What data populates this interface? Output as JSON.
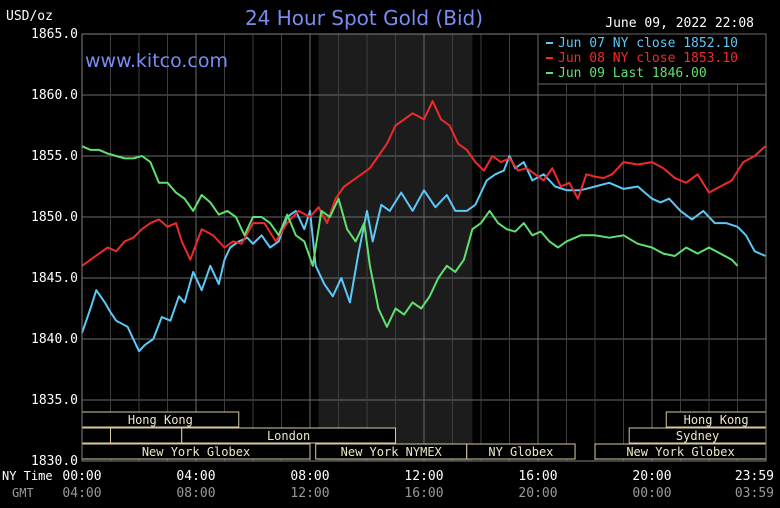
{
  "chart_data": {
    "type": "line",
    "title": "24 Hour Spot Gold (Bid)",
    "watermark": "www.kitco.com",
    "timestamp": "June 09, 2022 22:08",
    "y_unit_label": "USD/oz",
    "ylim": [
      1830,
      1865
    ],
    "y_ticks": [
      "1865.0",
      "1860.0",
      "1855.0",
      "1850.0",
      "1845.0",
      "1840.0",
      "1835.0",
      "1830.0"
    ],
    "x_row_labels": {
      "ny": "NY Time",
      "gmt": "GMT"
    },
    "x_ticks_ny": [
      "00:00",
      "04:00",
      "08:00",
      "12:00",
      "16:00",
      "20:00",
      "23:59"
    ],
    "x_ticks_gmt": [
      "04:00",
      "08:00",
      "12:00",
      "16:00",
      "20:00",
      "00:00",
      "03:59"
    ],
    "x_tick_hours": [
      0,
      4,
      8,
      12,
      16,
      20,
      23.983
    ],
    "grid": true,
    "legend_position": "top-right",
    "shaded_hours": [
      8.3,
      13.7
    ],
    "sessions": [
      {
        "label": "Hong Kong",
        "row": 0,
        "start": 0,
        "end": 5.5
      },
      {
        "label": "Hong Kong",
        "row": 0,
        "start": 20.5,
        "end": 24
      },
      {
        "label": "",
        "row": 1,
        "start": 0,
        "end": 1
      },
      {
        "label": "",
        "row": 1,
        "start": 1,
        "end": 3.5
      },
      {
        "label": "London",
        "row": 1,
        "start": 3.5,
        "end": 11
      },
      {
        "label": "Sydney",
        "row": 1,
        "start": 19.2,
        "end": 24
      },
      {
        "label": "New York Globex",
        "row": 2,
        "start": 0,
        "end": 8
      },
      {
        "label": "New York NYMEX",
        "row": 2,
        "start": 8.2,
        "end": 13.5
      },
      {
        "label": "NY Globex",
        "row": 2,
        "start": 13.5,
        "end": 17.3
      },
      {
        "label": "New York Globex",
        "row": 2,
        "start": 18,
        "end": 24
      }
    ],
    "series": [
      {
        "name": "Jun 07 NY close 1852.10",
        "color": "#5bc8f5",
        "x": [
          0,
          0.3,
          0.5,
          0.8,
          1.0,
          1.2,
          1.6,
          2.0,
          2.2,
          2.5,
          2.8,
          3.1,
          3.4,
          3.6,
          3.9,
          4.2,
          4.5,
          4.8,
          5.0,
          5.2,
          5.5,
          5.8,
          6.0,
          6.3,
          6.6,
          6.9,
          7.2,
          7.5,
          7.8,
          8.0,
          8.2,
          8.5,
          8.8,
          9.1,
          9.4,
          9.7,
          10.0,
          10.2,
          10.5,
          10.8,
          11.2,
          11.6,
          12.0,
          12.4,
          12.8,
          13.1,
          13.5,
          13.8,
          14.2,
          14.5,
          14.8,
          15.0,
          15.2,
          15.5,
          15.8,
          16.2,
          16.6,
          17.0,
          17.5,
          18.0,
          18.5,
          19.0,
          19.5,
          20.0,
          20.3,
          20.6,
          21.0,
          21.4,
          21.8,
          22.2,
          22.6,
          23.0,
          23.3,
          23.6,
          23.98
        ],
        "y": [
          1840.5,
          1842.5,
          1844,
          1843,
          1842.2,
          1841.5,
          1841,
          1839,
          1839.5,
          1840,
          1841.8,
          1841.5,
          1843.5,
          1843,
          1845.5,
          1844,
          1846,
          1844.5,
          1846.5,
          1847.5,
          1848,
          1848.3,
          1847.8,
          1848.5,
          1847.5,
          1848,
          1850,
          1850.5,
          1849,
          1850.5,
          1846,
          1844.5,
          1843.5,
          1845,
          1843,
          1847,
          1850.5,
          1848,
          1851,
          1850.5,
          1852,
          1850.5,
          1852.2,
          1850.8,
          1851.8,
          1850.5,
          1850.5,
          1851,
          1853,
          1853.5,
          1853.8,
          1855,
          1854,
          1854.5,
          1853,
          1853.5,
          1852.5,
          1852.2,
          1852.2,
          1852.5,
          1852.8,
          1852.3,
          1852.5,
          1851.5,
          1851.2,
          1851.5,
          1850.5,
          1849.8,
          1850.5,
          1849.5,
          1849.5,
          1849.2,
          1848.5,
          1847.2,
          1846.8
        ]
      },
      {
        "name": "Jun 08 NY close 1853.10",
        "color": "#ee2a2a",
        "x": [
          0,
          0.3,
          0.6,
          0.9,
          1.2,
          1.5,
          1.8,
          2.1,
          2.4,
          2.7,
          3.0,
          3.3,
          3.5,
          3.8,
          4.2,
          4.6,
          5.0,
          5.3,
          5.6,
          6.0,
          6.4,
          6.8,
          7.2,
          7.6,
          8.0,
          8.3,
          8.6,
          8.9,
          9.2,
          9.5,
          9.8,
          10.1,
          10.4,
          10.7,
          11.0,
          11.3,
          11.6,
          12.0,
          12.3,
          12.6,
          12.9,
          13.2,
          13.5,
          13.8,
          14.1,
          14.4,
          14.7,
          15.0,
          15.3,
          15.6,
          15.9,
          16.2,
          16.5,
          16.8,
          17.1,
          17.4,
          17.7,
          18.0,
          18.3,
          18.6,
          19.0,
          19.5,
          20.0,
          20.4,
          20.8,
          21.2,
          21.6,
          22.0,
          22.4,
          22.8,
          23.2,
          23.6,
          23.98
        ],
        "y": [
          1846,
          1846.5,
          1847,
          1847.5,
          1847.2,
          1848,
          1848.3,
          1849,
          1849.5,
          1849.8,
          1849.2,
          1849.5,
          1848,
          1846.5,
          1849,
          1848.5,
          1847.5,
          1848,
          1847.8,
          1849.5,
          1849.5,
          1848,
          1849.5,
          1850.5,
          1850,
          1850.8,
          1849.5,
          1851.5,
          1852.5,
          1853,
          1853.5,
          1854,
          1855,
          1856,
          1857.5,
          1858,
          1858.5,
          1858,
          1859.5,
          1858,
          1857.5,
          1856,
          1855.5,
          1854.5,
          1853.8,
          1855,
          1854.5,
          1854.8,
          1853.8,
          1854,
          1853.5,
          1853,
          1854,
          1852.5,
          1852.8,
          1851.5,
          1853.5,
          1853.3,
          1853.2,
          1853.5,
          1854.5,
          1854.3,
          1854.5,
          1854,
          1853.2,
          1852.8,
          1853.5,
          1852,
          1852.5,
          1853,
          1854.5,
          1855,
          1855.8
        ]
      },
      {
        "name": "Jun 09 Last 1846.00",
        "color": "#5fe070",
        "x": [
          0,
          0.3,
          0.6,
          0.9,
          1.2,
          1.5,
          1.8,
          2.1,
          2.4,
          2.7,
          3.0,
          3.3,
          3.6,
          3.9,
          4.2,
          4.5,
          4.8,
          5.1,
          5.4,
          5.7,
          6.0,
          6.3,
          6.6,
          6.9,
          7.2,
          7.5,
          7.8,
          8.1,
          8.4,
          8.7,
          9.0,
          9.3,
          9.6,
          9.9,
          10.1,
          10.4,
          10.7,
          11.0,
          11.3,
          11.6,
          11.9,
          12.2,
          12.5,
          12.8,
          13.1,
          13.4,
          13.7,
          14.0,
          14.3,
          14.6,
          14.9,
          15.2,
          15.5,
          15.8,
          16.1,
          16.4,
          16.7,
          17.0,
          17.5,
          18.0,
          18.5,
          19.0,
          19.5,
          20.0,
          20.4,
          20.8,
          21.2,
          21.6,
          22.0,
          22.4,
          22.8,
          23.0
        ],
        "y": [
          1855.8,
          1855.5,
          1855.5,
          1855.2,
          1855,
          1854.8,
          1854.8,
          1855,
          1854.5,
          1852.8,
          1852.8,
          1852,
          1851.5,
          1850.5,
          1851.8,
          1851.2,
          1850.2,
          1850.5,
          1850,
          1848.5,
          1850,
          1850,
          1849.5,
          1848.5,
          1850.2,
          1848.5,
          1848,
          1846,
          1850.5,
          1850,
          1851.5,
          1849,
          1848,
          1849.5,
          1846,
          1842.5,
          1841,
          1842.5,
          1842,
          1843,
          1842.5,
          1843.5,
          1845,
          1846,
          1845.5,
          1846.5,
          1849,
          1849.5,
          1850.5,
          1849.5,
          1849,
          1848.8,
          1849.5,
          1848.5,
          1848.8,
          1848,
          1847.5,
          1848,
          1848.5,
          1848.5,
          1848.3,
          1848.5,
          1847.8,
          1847.5,
          1847,
          1846.8,
          1847.5,
          1847,
          1847.5,
          1847,
          1846.5,
          1846
        ]
      }
    ]
  }
}
